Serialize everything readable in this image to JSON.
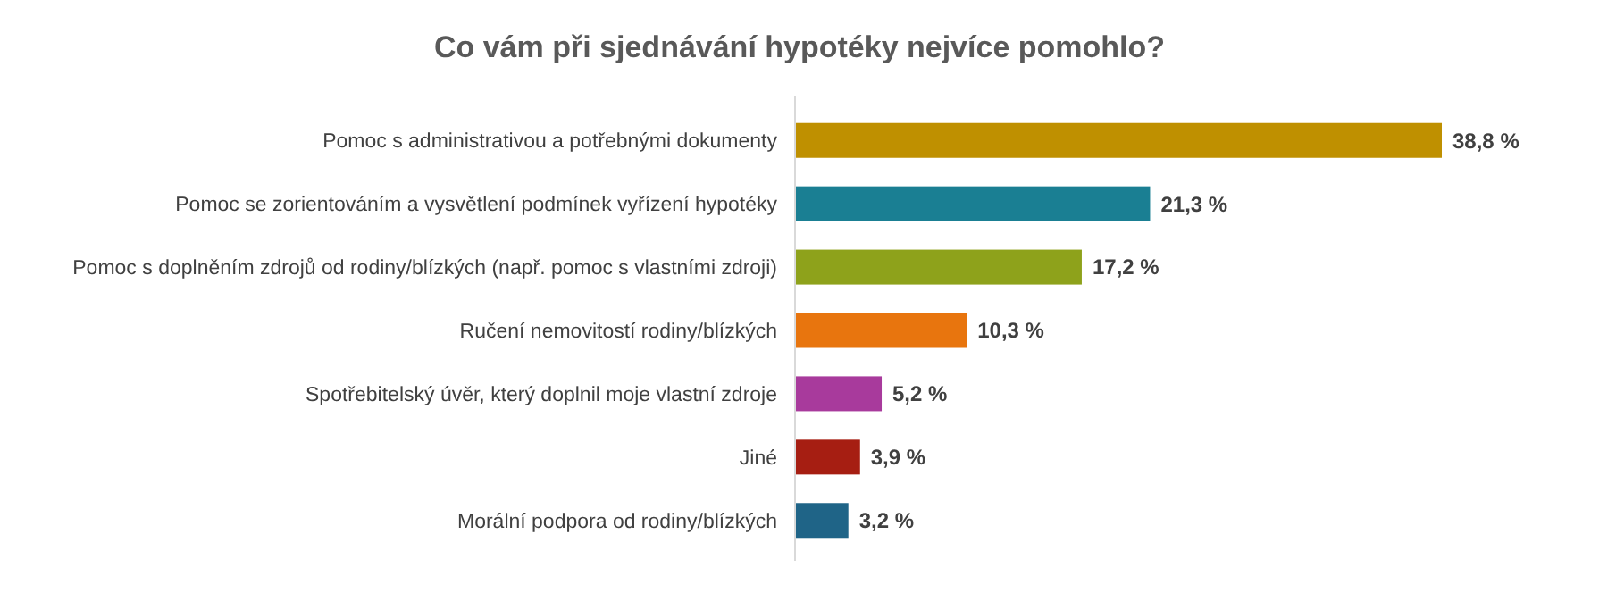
{
  "chart_data": {
    "type": "bar",
    "orientation": "horizontal",
    "title": "Co vám při sjednávání hypotéky nejvíce pomohlo?",
    "categories": [
      "Pomoc s administrativou a potřebnými dokumenty",
      "Pomoc se zorientováním a vysvětlení podmínek vyřízení hypotéky",
      "Pomoc s doplněním zdrojů od rodiny/blízkých (např. pomoc s vlastními zdroji)",
      "Ručení nemovitostí rodiny/blízkých",
      "Spotřebitelský úvěr, který doplnil moje vlastní zdroje",
      "Jiné",
      "Morální podpora od rodiny/blízkých"
    ],
    "values": [
      38.8,
      21.3,
      17.2,
      10.3,
      5.2,
      3.9,
      3.2
    ],
    "colors": [
      "#bf9000",
      "#1a7f93",
      "#8ea21b",
      "#e8750e",
      "#a83a9c",
      "#a61e12",
      "#1f6487"
    ],
    "value_labels": [
      "38,8 %",
      "21,3 %",
      "17,2 %",
      "10,3 %",
      "5,2 %",
      "3,9 %",
      "3,2 %"
    ]
  }
}
